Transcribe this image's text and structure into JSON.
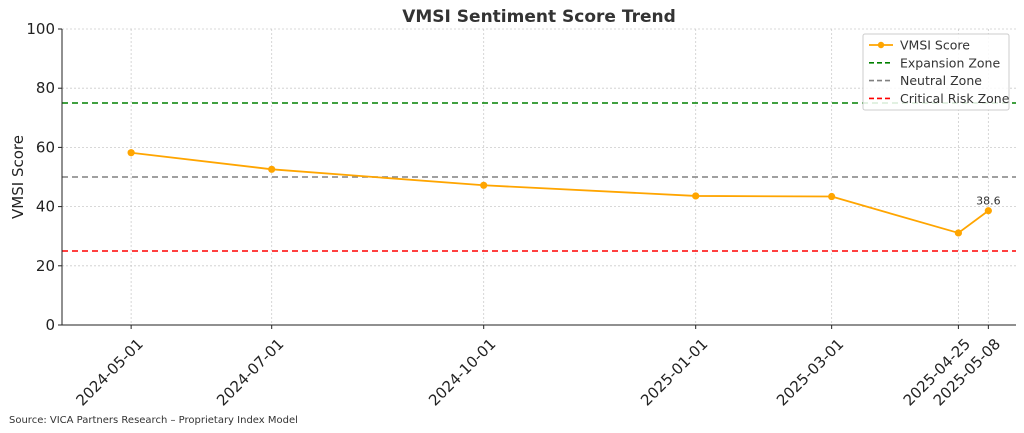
{
  "chart_data": {
    "type": "line",
    "title": "VMSI Sentiment Score Trend",
    "xlabel": "",
    "ylabel": "VMSI Score",
    "ylim": [
      0,
      100
    ],
    "yticks": [
      0,
      20,
      40,
      60,
      80,
      100
    ],
    "xlim": [
      "2024-04-01",
      "2025-05-20"
    ],
    "x": [
      "2024-05-01",
      "2024-07-01",
      "2024-10-01",
      "2025-01-01",
      "2025-03-01",
      "2025-04-25",
      "2025-05-08"
    ],
    "grid": true,
    "legend_position": "top-right",
    "series": [
      {
        "name": "VMSI Score",
        "color": "#FFA500",
        "values": [
          58.2,
          52.6,
          47.2,
          43.6,
          43.4,
          31.1,
          38.6
        ]
      }
    ],
    "reference_lines": [
      {
        "name": "Expansion Zone",
        "value": 75,
        "color": "#008000"
      },
      {
        "name": "Neutral Zone",
        "value": 50,
        "color": "#808080"
      },
      {
        "name": "Critical Risk Zone",
        "value": 25,
        "color": "#FF0000"
      }
    ],
    "annotations": [
      {
        "x": "2025-05-08",
        "y": 38.6,
        "text": "38.6"
      }
    ],
    "source": "Source: VICA Partners Research – Proprietary Index Model"
  }
}
